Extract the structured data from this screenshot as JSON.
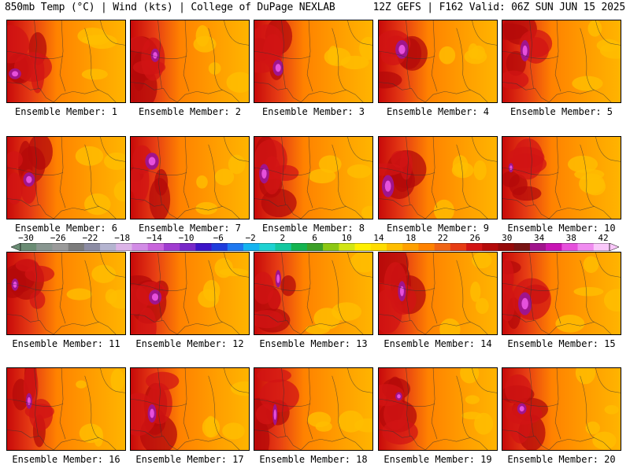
{
  "header": {
    "left": "850mb Temp (°C) | Wind (kts) | College of DuPage NEXLAB",
    "right": "12Z GEFS | F162 Valid: 06Z SUN JUN 15 2025"
  },
  "colorbar": {
    "labels": [
      "−30",
      "−26",
      "−22",
      "−18",
      "−14",
      "−10",
      "−6",
      "−2",
      "2",
      "6",
      "10",
      "14",
      "18",
      "22",
      "26",
      "30",
      "34",
      "38",
      "42"
    ],
    "colors": [
      "#6a8c74",
      "#889690",
      "#9a9a9a",
      "#7c7c7c",
      "#8c8ca4",
      "#b4b4d0",
      "#dcb4e8",
      "#d28ce6",
      "#c864dc",
      "#a03cd0",
      "#7828c8",
      "#3c14c8",
      "#1e3cdc",
      "#1e78f0",
      "#14b4f0",
      "#1ed2d2",
      "#14c8a0",
      "#14b450",
      "#3ca028",
      "#8cc814",
      "#d2e614",
      "#fff000",
      "#ffdc00",
      "#ffbe00",
      "#ffa000",
      "#ff8200",
      "#f06414",
      "#e63c14",
      "#d21414",
      "#b40a0a",
      "#960a0a",
      "#781414",
      "#a0148c",
      "#c814b4",
      "#e650dc",
      "#f08cf0",
      "#fac8fa"
    ]
  },
  "panels": [
    {
      "label": "Ensemble Member: 1",
      "member": 1
    },
    {
      "label": "Ensemble Member: 2",
      "member": 2
    },
    {
      "label": "Ensemble Member: 3",
      "member": 3
    },
    {
      "label": "Ensemble Member: 4",
      "member": 4
    },
    {
      "label": "Ensemble Member: 5",
      "member": 5
    },
    {
      "label": "Ensemble Member: 6",
      "member": 6
    },
    {
      "label": "Ensemble Member: 7",
      "member": 7
    },
    {
      "label": "Ensemble Member: 8",
      "member": 8
    },
    {
      "label": "Ensemble Member: 9",
      "member": 9
    },
    {
      "label": "Ensemble Member: 10",
      "member": 10
    },
    {
      "label": "Ensemble Member: 11",
      "member": 11
    },
    {
      "label": "Ensemble Member: 12",
      "member": 12
    },
    {
      "label": "Ensemble Member: 13",
      "member": 13
    },
    {
      "label": "Ensemble Member: 14",
      "member": 14
    },
    {
      "label": "Ensemble Member: 15",
      "member": 15
    },
    {
      "label": "Ensemble Member: 16",
      "member": 16
    },
    {
      "label": "Ensemble Member: 17",
      "member": 17
    },
    {
      "label": "Ensemble Member: 18",
      "member": 18
    },
    {
      "label": "Ensemble Member: 19",
      "member": 19
    },
    {
      "label": "Ensemble Member: 20",
      "member": 20
    }
  ]
}
